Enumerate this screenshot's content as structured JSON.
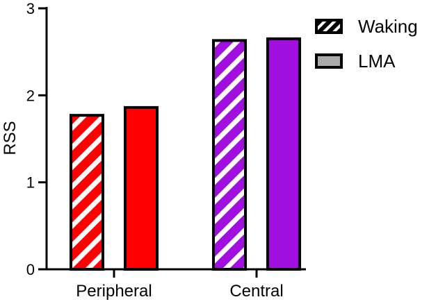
{
  "chart_data": {
    "type": "bar",
    "categories": [
      "Peripheral",
      "Central"
    ],
    "series": [
      {
        "name": "Waking",
        "values": [
          1.77,
          2.63
        ],
        "pattern": "hatched",
        "colors": [
          "#ff0000",
          "#a00ee0"
        ]
      },
      {
        "name": "LMA",
        "values": [
          1.86,
          2.65
        ],
        "pattern": "solid",
        "colors": [
          "#ff0000",
          "#a00ee0"
        ]
      }
    ],
    "title": "",
    "xlabel": "",
    "ylabel": "RSS",
    "ylim": [
      0,
      3
    ],
    "yticks": [
      0,
      1,
      2,
      3
    ],
    "grid": false,
    "legend_position": "top-right",
    "legend_colors": {
      "Waking": "#000000",
      "LMA": "#aaaaaa"
    }
  }
}
